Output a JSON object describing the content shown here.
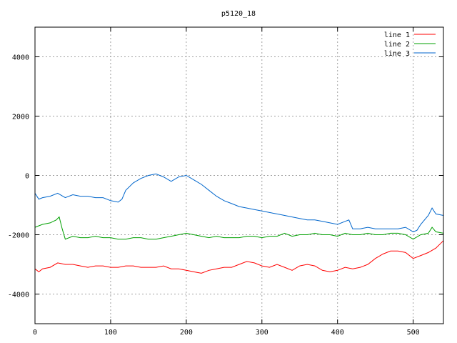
{
  "chart_data": {
    "type": "line",
    "title": "p5120_18",
    "xlabel": "",
    "ylabel": "",
    "xlim": [
      0,
      540
    ],
    "ylim": [
      -5000,
      5000
    ],
    "x_ticks": [
      0,
      100,
      200,
      300,
      400,
      500
    ],
    "y_ticks": [
      -4000,
      -2000,
      0,
      2000,
      4000
    ],
    "grid": true,
    "legend_position": "top-right",
    "series": [
      {
        "name": "line 1",
        "color": "#ff0000",
        "x": [
          0,
          5,
          10,
          20,
          30,
          40,
          50,
          60,
          70,
          80,
          90,
          100,
          110,
          120,
          130,
          140,
          150,
          160,
          170,
          180,
          190,
          200,
          210,
          220,
          230,
          240,
          250,
          260,
          270,
          280,
          290,
          300,
          310,
          320,
          330,
          340,
          350,
          360,
          370,
          380,
          390,
          400,
          410,
          420,
          430,
          440,
          450,
          460,
          470,
          480,
          490,
          500,
          510,
          520,
          530,
          540
        ],
        "y": [
          -3150,
          -3250,
          -3150,
          -3100,
          -2950,
          -3000,
          -3000,
          -3050,
          -3100,
          -3050,
          -3050,
          -3100,
          -3100,
          -3050,
          -3050,
          -3100,
          -3100,
          -3100,
          -3050,
          -3150,
          -3150,
          -3200,
          -3250,
          -3300,
          -3200,
          -3150,
          -3100,
          -3100,
          -3000,
          -2900,
          -2950,
          -3050,
          -3100,
          -3000,
          -3100,
          -3200,
          -3050,
          -3000,
          -3050,
          -3200,
          -3250,
          -3200,
          -3100,
          -3150,
          -3100,
          -3000,
          -2800,
          -2650,
          -2550,
          -2550,
          -2600,
          -2800,
          -2700,
          -2600,
          -2450,
          -2200
        ]
      },
      {
        "name": "line 2",
        "color": "#00a000",
        "x": [
          0,
          5,
          10,
          20,
          28,
          32,
          36,
          40,
          50,
          60,
          70,
          80,
          90,
          100,
          110,
          120,
          130,
          140,
          150,
          160,
          170,
          180,
          190,
          200,
          210,
          220,
          230,
          240,
          250,
          260,
          270,
          280,
          290,
          300,
          310,
          320,
          330,
          340,
          350,
          360,
          370,
          380,
          390,
          400,
          410,
          420,
          430,
          440,
          450,
          460,
          470,
          480,
          490,
          500,
          510,
          520,
          525,
          530,
          540
        ],
        "y": [
          -1750,
          -1700,
          -1650,
          -1600,
          -1500,
          -1400,
          -1800,
          -2150,
          -2050,
          -2100,
          -2100,
          -2050,
          -2100,
          -2100,
          -2150,
          -2150,
          -2100,
          -2100,
          -2150,
          -2150,
          -2100,
          -2050,
          -2000,
          -1950,
          -2000,
          -2050,
          -2100,
          -2050,
          -2100,
          -2100,
          -2100,
          -2050,
          -2050,
          -2100,
          -2050,
          -2050,
          -1950,
          -2050,
          -2000,
          -2000,
          -1950,
          -2000,
          -2000,
          -2050,
          -1950,
          -2000,
          -2000,
          -1950,
          -2000,
          -2000,
          -1950,
          -1950,
          -2000,
          -2150,
          -2000,
          -1950,
          -1750,
          -1900,
          -1950
        ]
      },
      {
        "name": "line 3",
        "color": "#0066cc",
        "x": [
          0,
          5,
          10,
          20,
          30,
          40,
          50,
          60,
          70,
          80,
          90,
          100,
          110,
          115,
          120,
          130,
          140,
          150,
          160,
          170,
          180,
          190,
          200,
          210,
          220,
          230,
          240,
          250,
          260,
          270,
          280,
          290,
          300,
          310,
          320,
          330,
          340,
          350,
          360,
          370,
          380,
          390,
          400,
          410,
          415,
          420,
          430,
          440,
          450,
          460,
          470,
          480,
          490,
          500,
          505,
          510,
          520,
          525,
          530,
          540
        ],
        "y": [
          -600,
          -800,
          -750,
          -700,
          -600,
          -750,
          -650,
          -700,
          -700,
          -750,
          -750,
          -850,
          -900,
          -800,
          -500,
          -250,
          -100,
          0,
          50,
          -50,
          -200,
          -50,
          0,
          -150,
          -300,
          -500,
          -700,
          -850,
          -950,
          -1050,
          -1100,
          -1150,
          -1200,
          -1250,
          -1300,
          -1350,
          -1400,
          -1450,
          -1500,
          -1500,
          -1550,
          -1600,
          -1650,
          -1550,
          -1500,
          -1800,
          -1800,
          -1750,
          -1800,
          -1800,
          -1800,
          -1800,
          -1750,
          -1900,
          -1850,
          -1650,
          -1350,
          -1100,
          -1300,
          -1350
        ]
      }
    ]
  }
}
